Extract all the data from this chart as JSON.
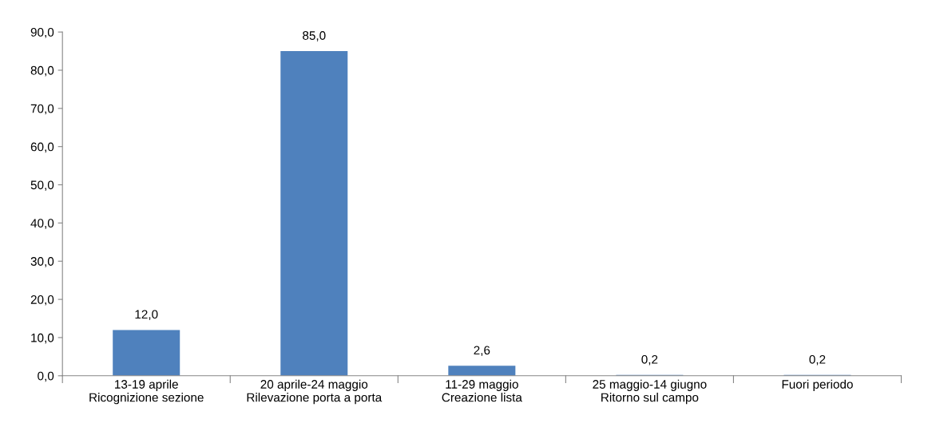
{
  "chart_data": {
    "type": "bar",
    "categories": [
      "13-19 aprile\nRicognizione sezione",
      "20 aprile-24 maggio\nRilevazione porta a porta",
      "11-29 maggio\nCreazione lista",
      "25 maggio-14 giugno\nRitorno sul campo",
      "Fuori periodo"
    ],
    "values": [
      12.0,
      85.0,
      2.6,
      0.2,
      0.2
    ],
    "value_labels": [
      "12,0",
      "85,0",
      "2,6",
      "0,2",
      "0,2"
    ],
    "color": "#4f81bd",
    "ylim": [
      0,
      90
    ],
    "yticks": [
      {
        "value": 0,
        "label": "0,0"
      },
      {
        "value": 10,
        "label": "10,0"
      },
      {
        "value": 20,
        "label": "20,0"
      },
      {
        "value": 30,
        "label": "30,0"
      },
      {
        "value": 40,
        "label": "40,0"
      },
      {
        "value": 50,
        "label": "50,0"
      },
      {
        "value": 60,
        "label": "60,0"
      },
      {
        "value": 70,
        "label": "70,0"
      },
      {
        "value": 80,
        "label": "80,0"
      },
      {
        "value": 90,
        "label": "90,0"
      }
    ],
    "grid": false
  }
}
